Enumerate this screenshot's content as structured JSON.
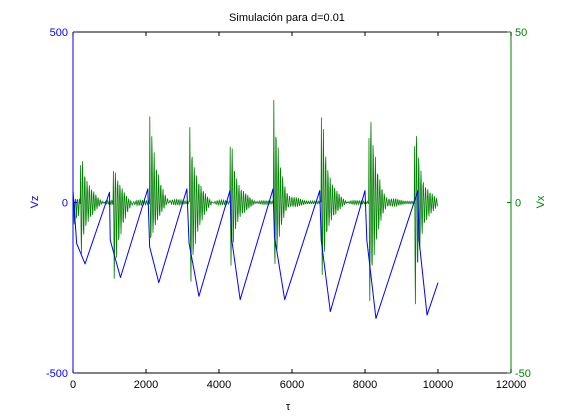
{
  "chart_data": {
    "type": "line",
    "title": "Simulación para d=0.01",
    "xlabel": "τ",
    "xlim": [
      0,
      12000
    ],
    "x_ticks": [
      "0",
      "2000",
      "4000",
      "6000",
      "8000",
      "10000",
      "12000"
    ],
    "grid": false,
    "legend": "none",
    "colors": {
      "left_axis": "#0000ff",
      "right_axis": "#008000",
      "series_vz": "#0000ff",
      "series_vx": "#008000"
    },
    "left_axis": {
      "label": "Vz",
      "ylim": [
        -500,
        500
      ],
      "ticks": [
        "500",
        "0",
        "-500"
      ]
    },
    "right_axis": {
      "label": "Vx",
      "ylim": [
        -50,
        50
      ],
      "ticks": [
        "50",
        "0",
        "-50"
      ]
    },
    "series": [
      {
        "axis": "left",
        "x": [
          0,
          100,
          330,
          1000,
          1020,
          1300,
          2050,
          2100,
          2350,
          3120,
          3180,
          3450,
          4300,
          4350,
          4580,
          5480,
          5520,
          5800,
          6760,
          6800,
          7050,
          8000,
          8050,
          8300,
          9450,
          9480,
          9700,
          10000
        ],
        "y": [
          35,
          -120,
          -180,
          30,
          -110,
          -220,
          40,
          -130,
          -235,
          40,
          -120,
          -275,
          35,
          -110,
          -285,
          40,
          -100,
          -285,
          35,
          -110,
          -320,
          35,
          -110,
          -340,
          35,
          -110,
          -330,
          -235
        ]
      },
      {
        "axis": "right",
        "peaks_x": [
          0,
          200,
          1100,
          2100,
          3200,
          4300,
          5500,
          6800,
          8100,
          9350
        ],
        "peaks_upper": [
          0,
          19,
          13,
          29,
          23,
          23,
          30,
          31,
          35,
          29
        ],
        "peaks_lower": [
          -7,
          -19,
          -28,
          -15,
          -30,
          -22,
          -22,
          -26,
          -35,
          -35
        ],
        "baseline": 0
      }
    ]
  }
}
